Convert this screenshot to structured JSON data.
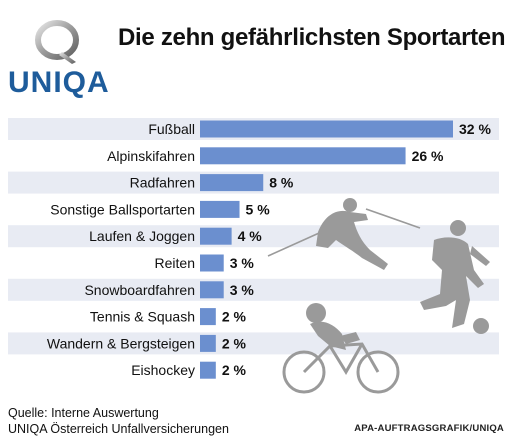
{
  "brand": {
    "name": "UNIQA"
  },
  "header": {
    "title": "Die zehn gefährlichsten Sportarten"
  },
  "footer": {
    "source_line1": "Quelle: Interne Auswertung",
    "source_line2": "UNIQA Österreich Unfallversicherungen",
    "credit": "APA-AUFTRAGSGRAFIK/UNIQA"
  },
  "colors": {
    "bar": "#6b8fcf",
    "band": "#e8ebf3",
    "brand": "#1e5c9b"
  },
  "icons": [
    "skier-icon",
    "footballer-icon",
    "cyclist-icon"
  ],
  "chart_data": {
    "type": "bar",
    "orientation": "horizontal",
    "title": "Die zehn gefährlichsten Sportarten",
    "categories": [
      "Fußball",
      "Alpinskifahren",
      "Radfahren",
      "Sonstige Ballsportarten",
      "Laufen & Joggen",
      "Reiten",
      "Snowboardfahren",
      "Tennis & Squash",
      "Wandern & Bergsteigen",
      "Eishockey"
    ],
    "values": [
      32,
      26,
      8,
      5,
      4,
      3,
      3,
      2,
      2,
      2
    ],
    "value_labels": [
      "32 %",
      "26 %",
      "8 %",
      "5 %",
      "4 %",
      "3 %",
      "3 %",
      "2 %",
      "2 %",
      "2 %"
    ],
    "unit": "%",
    "xlim": [
      0,
      32
    ],
    "grid": false,
    "legend": "none"
  }
}
